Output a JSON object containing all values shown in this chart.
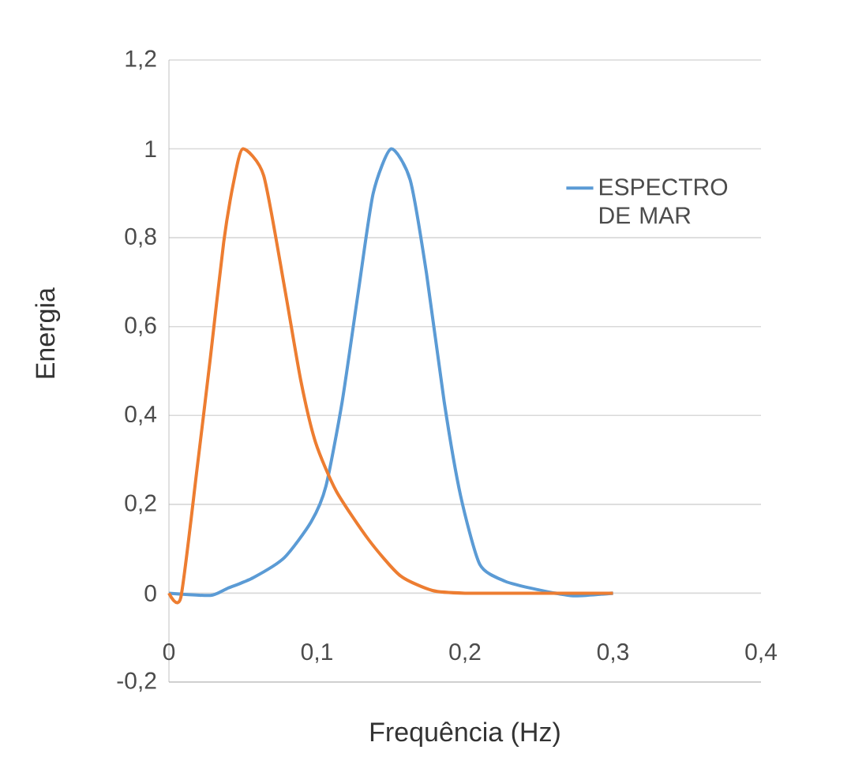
{
  "chart_data": {
    "type": "line",
    "xlabel": "Frequência (Hz)",
    "ylabel": "Energia",
    "xlim": [
      0,
      0.4
    ],
    "ylim": [
      -0.2,
      1.2
    ],
    "xticks": [
      {
        "value": 0,
        "label": "0"
      },
      {
        "value": 0.1,
        "label": "0,1"
      },
      {
        "value": 0.2,
        "label": "0,2"
      },
      {
        "value": 0.3,
        "label": "0,3"
      },
      {
        "value": 0.4,
        "label": "0,4"
      }
    ],
    "yticks": [
      {
        "value": -0.2,
        "label": "-0,2"
      },
      {
        "value": 0,
        "label": "0"
      },
      {
        "value": 0.2,
        "label": "0,2"
      },
      {
        "value": 0.4,
        "label": "0,4"
      },
      {
        "value": 0.6,
        "label": "0,6"
      },
      {
        "value": 0.8,
        "label": "0,8"
      },
      {
        "value": 1,
        "label": "1"
      },
      {
        "value": 1.2,
        "label": "1,2"
      }
    ],
    "grid": "y",
    "legend": "top right",
    "series": [
      {
        "name": "ESPECTRO DE MAR",
        "color": "#5b9bd5",
        "x": [
          0,
          0.028,
          0.039,
          0.057,
          0.078,
          0.096,
          0.106,
          0.117,
          0.128,
          0.138,
          0.15,
          0.163,
          0.174,
          0.186,
          0.197,
          0.21,
          0.227,
          0.249,
          0.273,
          0.3
        ],
        "values": [
          0,
          -0.005,
          0.01,
          0.035,
          0.08,
          0.16,
          0.24,
          0.43,
          0.68,
          0.9,
          1.0,
          0.93,
          0.72,
          0.43,
          0.22,
          0.065,
          0.027,
          0.008,
          -0.006,
          0
        ]
      },
      {
        "color": "#ed7d31",
        "x": [
          0,
          0.008,
          0.019,
          0.028,
          0.037,
          0.044,
          0.05,
          0.064,
          0.078,
          0.089,
          0.099,
          0.113,
          0.135,
          0.156,
          0.178,
          0.2,
          0.25,
          0.3
        ],
        "values": [
          0,
          -0.01,
          0.28,
          0.53,
          0.79,
          0.93,
          1.0,
          0.94,
          0.69,
          0.48,
          0.34,
          0.23,
          0.12,
          0.04,
          0.006,
          0,
          0,
          0
        ]
      }
    ]
  }
}
